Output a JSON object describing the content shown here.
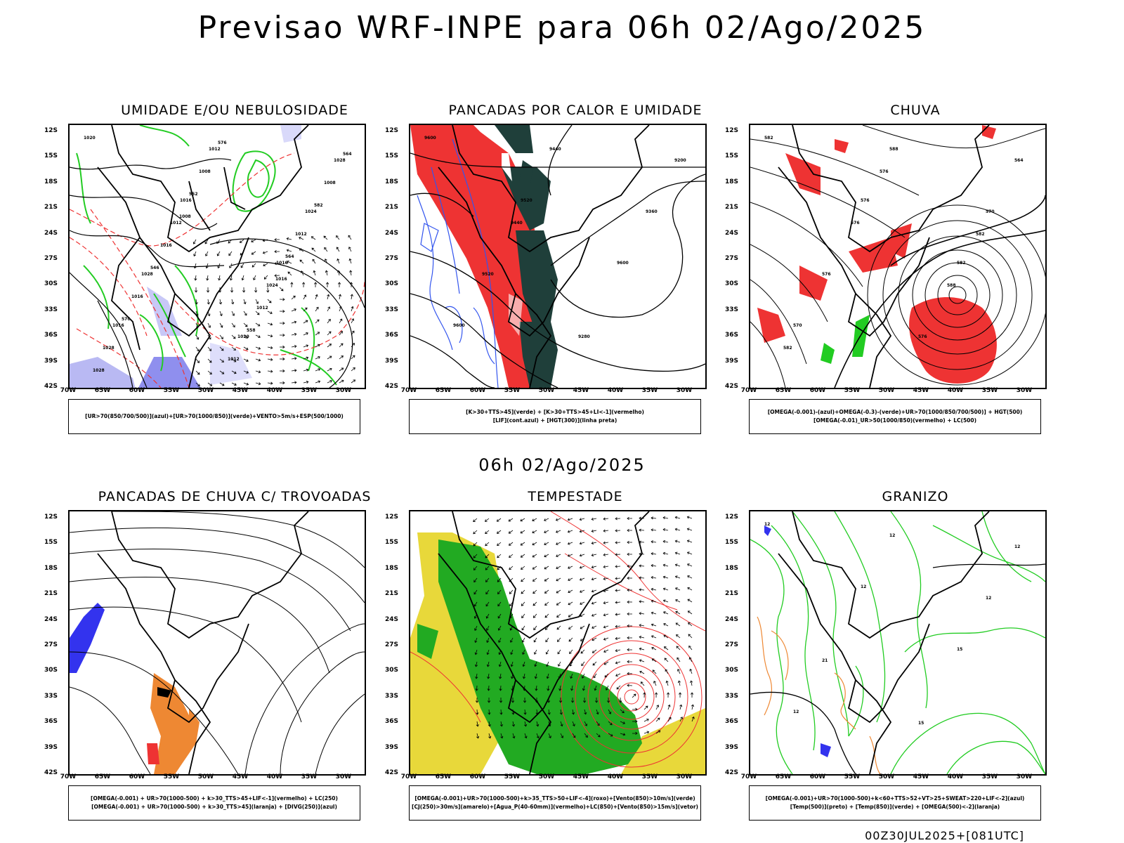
{
  "main_title": "Previsao WRF-INPE  para 06h 02/Ago/2025",
  "mid_title": "06h 02/Ago/2025",
  "footer": "00Z30JUL2025+[081UTC]",
  "lat_labels": [
    "12S",
    "15S",
    "18S",
    "21S",
    "24S",
    "27S",
    "30S",
    "33S",
    "36S",
    "39S",
    "42S"
  ],
  "lon_labels": [
    "70W",
    "65W",
    "60W",
    "55W",
    "50W",
    "45W",
    "40W",
    "35W",
    "30W"
  ],
  "panels": [
    {
      "id": "umidade",
      "title": "UMIDADE E/OU NEBULOSIDADE",
      "legend": [
        "[UR>70(850/700/500)](azul)+[UR>70(1000/850)](verde)+VENTO>5m/s+ESP(500/1000)"
      ],
      "contour_labels": [
        "1020",
        "1016",
        "1016",
        "1016",
        "1012",
        "1024",
        "1028",
        "1020",
        "1028",
        "1012",
        "1024",
        "1028",
        "1008",
        "1012",
        "1016",
        "1012",
        "1008",
        "1016",
        "1012",
        "1028",
        "552",
        "564",
        "570",
        "576",
        "582",
        "546",
        "558",
        "564",
        "1008",
        "1016"
      ]
    },
    {
      "id": "pancadas_calor",
      "title": "PANCADAS POR CALOR E UMIDADE",
      "legend": [
        "[K>30+TTS>45](verde) + [K>30+TTS>45+LI<-1](vermelho)",
        "[LIF](cont.azul) + [HGT(300)](linha preta)"
      ],
      "contour_labels": [
        "9600",
        "9520",
        "9600",
        "9600",
        "9440",
        "9360",
        "9520",
        "9280",
        "9200",
        "9440"
      ]
    },
    {
      "id": "chuva",
      "title": "CHUVA",
      "legend": [
        "[OMEGA(-0.001)-(azul)+OMEGA(-0.3)-(verde)+UR>70(1000/850/700/500)] + HGT(500)",
        "[OMEGA(-0.01)_UR>50(1000/850)(vermelho) + LC(500)"
      ],
      "contour_labels": [
        "582",
        "576",
        "582",
        "570",
        "588",
        "570",
        "576",
        "576",
        "564",
        "576",
        "588",
        "582",
        "576",
        "582"
      ]
    },
    {
      "id": "trovoadas",
      "title": "PANCADAS DE CHUVA C/ TROVOADAS",
      "legend": [
        "[OMEGA(-0.001) + UR>70(1000-500) + k>30_TTS>45+LIF<-1](vermelho) + LC(250)",
        "[OMEGA(-0.001) + UR>70(1000-500) + k>30_TTS>45](laranja) + [DIVG(250)](azul)"
      ],
      "contour_labels": []
    },
    {
      "id": "tempestade",
      "title": "TEMPESTADE",
      "legend": [
        "[OMEGA(-0.001)+UR>70(1000-500)+k>35_TTS>50+LIF<-4](roxo)+[Vento(850)>10m/s](verde)",
        "[CJ(250)>30m/s](amarelo)+[Agua_P(40-60mm)](vermelho)+LC(850)+[Vento(850)>15m/s](vetor)"
      ],
      "contour_labels": []
    },
    {
      "id": "granizo",
      "title": "GRANIZO",
      "legend": [
        "[OMEGA(-0.001)+UR>70(1000-500)+k<60+TTS>52+VT>25+SWEAT>220+LIF<-2](azul)",
        "[Temp(500)](preto) + [Temp(850)](verde) + [OMEGA(500)<-2](laranja)"
      ],
      "contour_labels": [
        "12",
        "12",
        "15",
        "12",
        "12",
        "12",
        "21",
        "15",
        "12"
      ]
    }
  ],
  "colors": {
    "azul": "#3333ee",
    "verde": "#22cc22",
    "vermelho": "#ee3333",
    "laranja": "#ee8833",
    "amarelo": "#e8d83a",
    "verde_escuro": "#1f3f3a",
    "roxo": "#aa88ee"
  }
}
